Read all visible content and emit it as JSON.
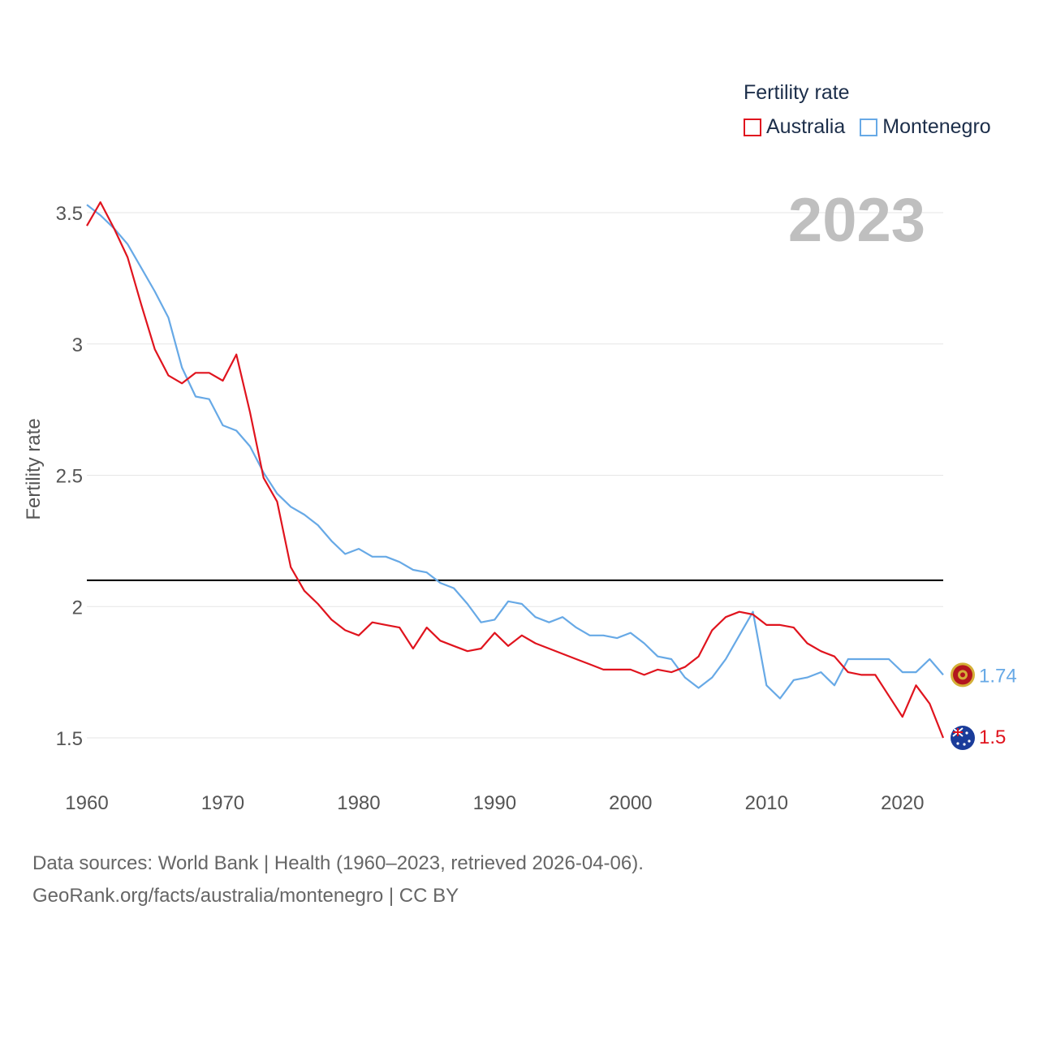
{
  "chart_data": {
    "type": "line",
    "title": "Fertility rate",
    "current_year": "2023",
    "ylabel": "Fertility rate",
    "xlabel": "",
    "xlim": [
      1960,
      2023
    ],
    "ylim": [
      1.4,
      3.65
    ],
    "x_ticks": [
      "1960",
      "1970",
      "1980",
      "1990",
      "2000",
      "2010",
      "2020"
    ],
    "y_ticks": [
      "1.5",
      "2",
      "2.5",
      "3",
      "3.5"
    ],
    "reference_line": 2.1,
    "x": [
      1960,
      1961,
      1962,
      1963,
      1964,
      1965,
      1966,
      1967,
      1968,
      1969,
      1970,
      1971,
      1972,
      1973,
      1974,
      1975,
      1976,
      1977,
      1978,
      1979,
      1980,
      1981,
      1982,
      1983,
      1984,
      1985,
      1986,
      1987,
      1988,
      1989,
      1990,
      1991,
      1992,
      1993,
      1994,
      1995,
      1996,
      1997,
      1998,
      1999,
      2000,
      2001,
      2002,
      2003,
      2004,
      2005,
      2006,
      2007,
      2008,
      2009,
      2010,
      2011,
      2012,
      2013,
      2014,
      2015,
      2016,
      2017,
      2018,
      2019,
      2020,
      2021,
      2022,
      2023
    ],
    "series": [
      {
        "name": "Australia",
        "color": "#e0141e",
        "end_label": "1.5",
        "values": [
          3.45,
          3.54,
          3.44,
          3.33,
          3.15,
          2.98,
          2.88,
          2.85,
          2.89,
          2.89,
          2.86,
          2.96,
          2.74,
          2.49,
          2.4,
          2.15,
          2.06,
          2.01,
          1.95,
          1.91,
          1.89,
          1.94,
          1.93,
          1.92,
          1.84,
          1.92,
          1.87,
          1.85,
          1.83,
          1.84,
          1.9,
          1.85,
          1.89,
          1.86,
          1.84,
          1.82,
          1.8,
          1.78,
          1.76,
          1.76,
          1.76,
          1.74,
          1.76,
          1.75,
          1.77,
          1.81,
          1.91,
          1.96,
          1.98,
          1.97,
          1.93,
          1.93,
          1.92,
          1.86,
          1.83,
          1.81,
          1.75,
          1.74,
          1.74,
          1.66,
          1.58,
          1.7,
          1.63,
          1.5
        ]
      },
      {
        "name": "Montenegro",
        "color": "#67a9e6",
        "end_label": "1.74",
        "values": [
          3.53,
          3.49,
          3.44,
          3.38,
          3.29,
          3.2,
          3.1,
          2.91,
          2.8,
          2.79,
          2.69,
          2.67,
          2.61,
          2.51,
          2.43,
          2.38,
          2.35,
          2.31,
          2.25,
          2.2,
          2.22,
          2.19,
          2.19,
          2.17,
          2.14,
          2.13,
          2.09,
          2.07,
          2.01,
          1.94,
          1.95,
          2.02,
          2.01,
          1.96,
          1.94,
          1.96,
          1.92,
          1.89,
          1.89,
          1.88,
          1.9,
          1.86,
          1.81,
          1.8,
          1.73,
          1.69,
          1.73,
          1.8,
          1.89,
          1.98,
          1.7,
          1.65,
          1.72,
          1.73,
          1.75,
          1.7,
          1.8,
          1.8,
          1.8,
          1.8,
          1.75,
          1.75,
          1.8,
          1.74
        ]
      }
    ]
  },
  "source": {
    "line1": "Data sources: World Bank | Health (1960–2023, retrieved 2026-04-06).",
    "line2": "GeoRank.org/facts/australia/montenegro | CC BY"
  }
}
